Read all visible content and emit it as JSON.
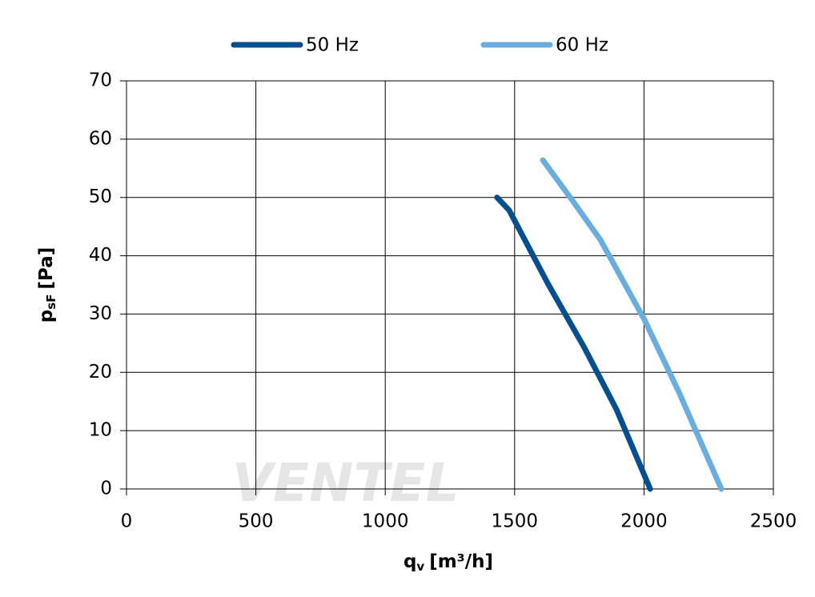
{
  "chart_data": {
    "type": "line",
    "xlabel": {
      "main": "q",
      "sub": "v",
      "unit": "[m³/h]"
    },
    "ylabel": {
      "main": "p",
      "sub": "sF",
      "unit": "[Pa]"
    },
    "watermark": "VENTEL",
    "xlim": [
      0,
      2500
    ],
    "xticks": [
      0,
      500,
      1000,
      1500,
      2000,
      2500
    ],
    "ylim": [
      0,
      70
    ],
    "yticks": [
      0,
      10,
      20,
      30,
      40,
      50,
      60,
      70
    ],
    "grid": true,
    "legend": "top",
    "series": [
      {
        "name": "50 Hz",
        "color": "#064f8f",
        "x": [
          1432,
          1479,
          1630,
          1770,
          1894,
          2024
        ],
        "values": [
          50,
          47.8,
          35.1,
          24.2,
          13.6,
          0
        ]
      },
      {
        "name": "60 Hz",
        "color": "#6aaedf",
        "x": [
          1609,
          1723,
          1832,
          2002,
          2135,
          2299
        ],
        "values": [
          56.4,
          49.5,
          42.7,
          29,
          16.6,
          0
        ]
      }
    ]
  }
}
